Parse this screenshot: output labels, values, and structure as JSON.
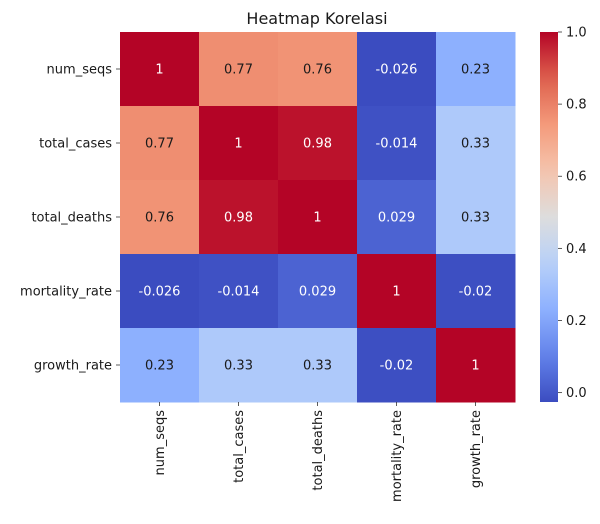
{
  "chart_data": {
    "type": "heatmap",
    "title": "Heatmap Korelasi",
    "xlabel": "",
    "ylabel": "",
    "x_categories": [
      "num_seqs",
      "total_cases",
      "total_deaths",
      "mortality_rate",
      "growth_rate"
    ],
    "y_categories": [
      "num_seqs",
      "total_cases",
      "total_deaths",
      "mortality_rate",
      "growth_rate"
    ],
    "values": [
      [
        1,
        0.77,
        0.76,
        -0.026,
        0.23
      ],
      [
        0.77,
        1,
        0.98,
        -0.014,
        0.33
      ],
      [
        0.76,
        0.98,
        1,
        0.029,
        0.33
      ],
      [
        -0.026,
        -0.014,
        0.029,
        1,
        -0.02
      ],
      [
        0.23,
        0.33,
        0.33,
        -0.02,
        1
      ]
    ],
    "cell_labels": [
      [
        "1",
        "0.77",
        "0.76",
        "-0.026",
        "0.23"
      ],
      [
        "0.77",
        "1",
        "0.98",
        "-0.014",
        "0.33"
      ],
      [
        "0.76",
        "0.98",
        "1",
        "0.029",
        "0.33"
      ],
      [
        "-0.026",
        "-0.014",
        "0.029",
        "1",
        "-0.02"
      ],
      [
        "0.23",
        "0.33",
        "0.33",
        "-0.02",
        "1"
      ]
    ],
    "colormap": "coolwarm",
    "color_range": [
      -0.026,
      1
    ],
    "colorbar_ticks": [
      "0.0",
      "0.2",
      "0.4",
      "0.6",
      "0.8",
      "1.0"
    ],
    "colorbar_tick_values": [
      0,
      0.2,
      0.4,
      0.6,
      0.8,
      1.0
    ],
    "grid": false,
    "colorbar_position": "right"
  }
}
